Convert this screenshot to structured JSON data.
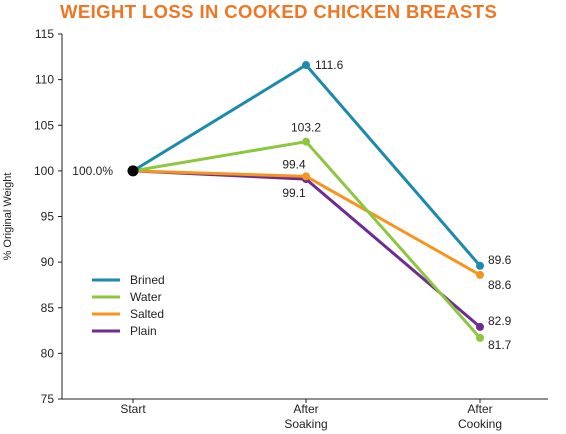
{
  "chart_data": {
    "type": "line",
    "title": "WEIGHT LOSS IN COOKED CHICKEN BREASTS",
    "xlabel": "",
    "ylabel": "% Original Weight",
    "categories": [
      "Start",
      "After Soaking",
      "After Cooking"
    ],
    "category_lines": [
      [
        "Start"
      ],
      [
        "After",
        "Soaking"
      ],
      [
        "After",
        "Cooking"
      ]
    ],
    "ylim": [
      75,
      115
    ],
    "yticks": [
      75,
      80,
      85,
      90,
      95,
      100,
      105,
      110,
      115
    ],
    "grid": false,
    "legend_position": "bottom-left",
    "start_label": "100.0%",
    "series": [
      {
        "name": "Brined",
        "color": "#1b8aab",
        "values": [
          100,
          111.6,
          89.6
        ],
        "labels": [
          "",
          "111.6",
          "89.6"
        ]
      },
      {
        "name": "Water",
        "color": "#8dc63f",
        "values": [
          100,
          103.2,
          81.7
        ],
        "labels": [
          "",
          "103.2",
          "81.7"
        ]
      },
      {
        "name": "Salted",
        "color": "#f7941d",
        "values": [
          100,
          99.4,
          88.6
        ],
        "labels": [
          "",
          "99.4",
          "88.6"
        ]
      },
      {
        "name": "Plain",
        "color": "#6d2c91",
        "values": [
          100,
          99.1,
          82.9
        ],
        "labels": [
          "",
          "99.1",
          "82.9"
        ]
      }
    ]
  }
}
